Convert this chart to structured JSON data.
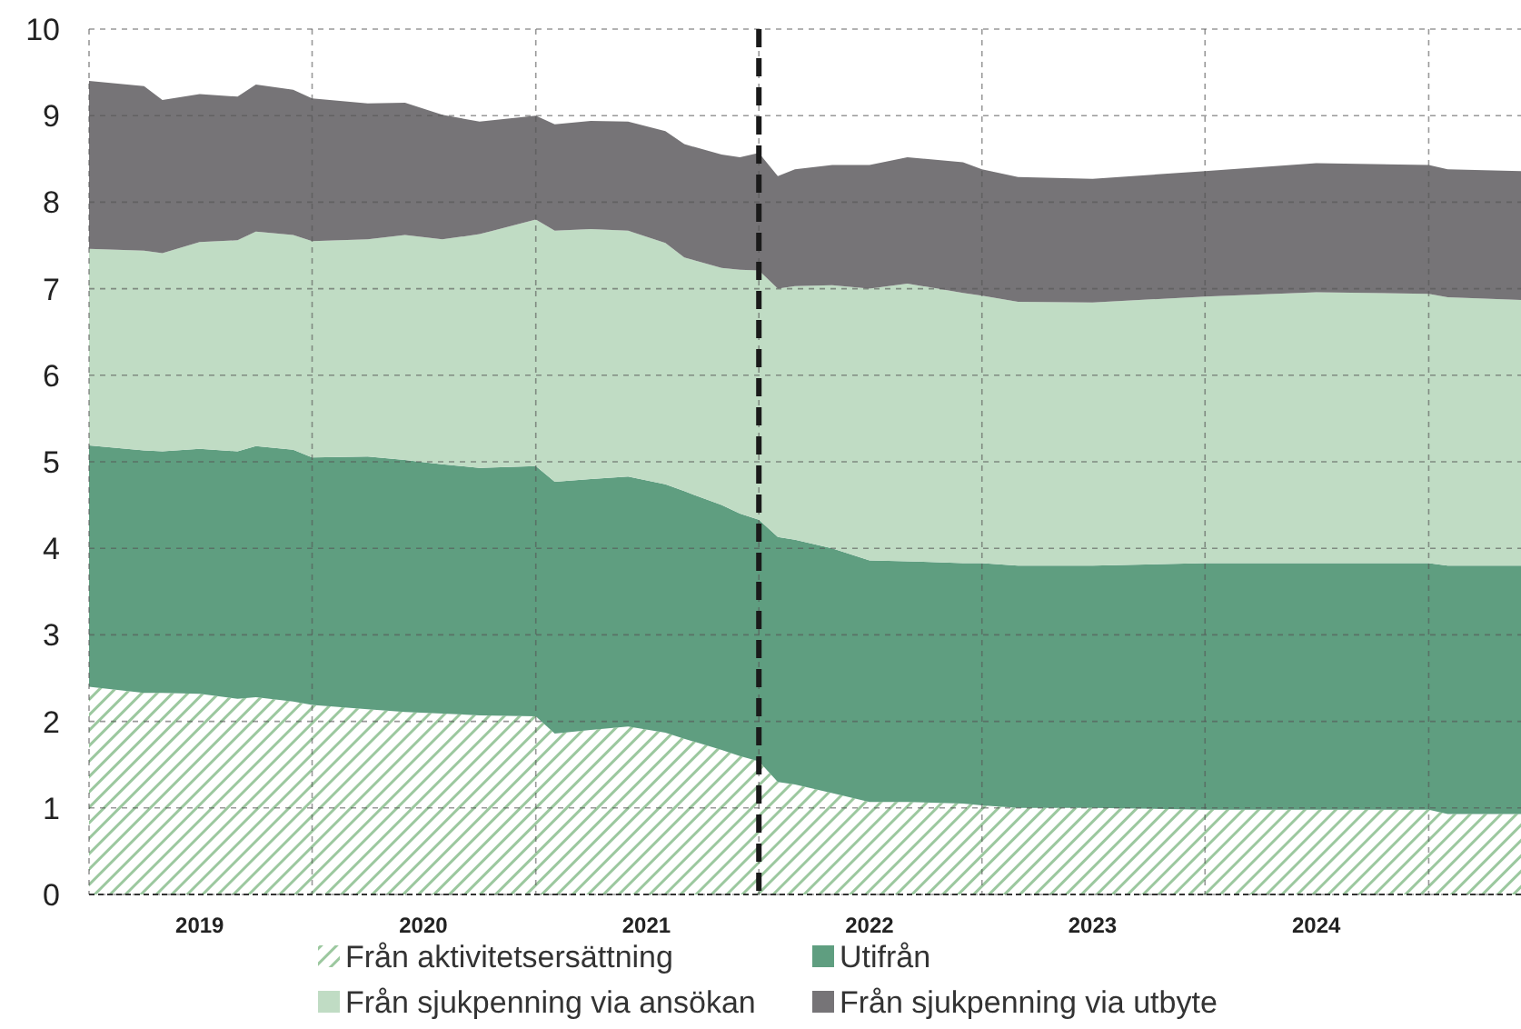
{
  "chart_data": {
    "type": "area",
    "stacked": true,
    "x": [
      "2019-01",
      "2019-04",
      "2019-05",
      "2019-07",
      "2019-09",
      "2019-10",
      "2019-12",
      "2020-01",
      "2020-04",
      "2020-06",
      "2020-08",
      "2020-10",
      "2021-01",
      "2021-02",
      "2021-04",
      "2021-06",
      "2021-08",
      "2021-09",
      "2021-11",
      "2021-12",
      "2022-01",
      "2022-02",
      "2022-03",
      "2022-05",
      "2022-07",
      "2022-09",
      "2022-12",
      "2023-01",
      "2023-03",
      "2023-07",
      "2024-01",
      "2024-07",
      "2025-01",
      "2025-02",
      "2025-06"
    ],
    "series": [
      {
        "name": "Från aktivitetsersättning",
        "color": "#9cc89f",
        "values": [
          2.4,
          2.33,
          2.33,
          2.32,
          2.26,
          2.28,
          2.23,
          2.19,
          2.14,
          2.11,
          2.09,
          2.07,
          2.06,
          1.86,
          1.9,
          1.94,
          1.87,
          1.8,
          1.67,
          1.6,
          1.54,
          1.3,
          1.27,
          1.17,
          1.07,
          1.07,
          1.05,
          1.03,
          1.0,
          1.0,
          0.98,
          0.98,
          0.98,
          0.93,
          0.93
        ]
      },
      {
        "name": "Utifrån",
        "color": "#5f9e80",
        "values": [
          2.79,
          2.8,
          2.79,
          2.83,
          2.86,
          2.9,
          2.91,
          2.86,
          2.92,
          2.91,
          2.88,
          2.86,
          2.89,
          2.91,
          2.9,
          2.89,
          2.87,
          2.86,
          2.83,
          2.8,
          2.79,
          2.83,
          2.83,
          2.83,
          2.79,
          2.78,
          2.78,
          2.8,
          2.8,
          2.8,
          2.85,
          2.85,
          2.85,
          2.87,
          2.87
        ]
      },
      {
        "name": "Från sjukpenning via ansökan",
        "color": "#c0dcc4",
        "values": [
          2.27,
          2.31,
          2.29,
          2.39,
          2.44,
          2.48,
          2.48,
          2.5,
          2.51,
          2.6,
          2.6,
          2.7,
          2.85,
          2.9,
          2.89,
          2.84,
          2.79,
          2.7,
          2.74,
          2.82,
          2.88,
          2.87,
          2.93,
          3.04,
          3.14,
          3.21,
          3.12,
          3.09,
          3.05,
          3.04,
          3.08,
          3.13,
          3.11,
          3.1,
          3.07
        ]
      },
      {
        "name": "Från sjukpenning via utbyte",
        "color": "#767477",
        "values": [
          1.94,
          1.9,
          1.77,
          1.71,
          1.66,
          1.7,
          1.68,
          1.65,
          1.57,
          1.53,
          1.44,
          1.3,
          1.2,
          1.23,
          1.25,
          1.26,
          1.29,
          1.31,
          1.31,
          1.3,
          1.36,
          1.3,
          1.35,
          1.39,
          1.43,
          1.46,
          1.51,
          1.46,
          1.44,
          1.43,
          1.45,
          1.49,
          1.49,
          1.48,
          1.49
        ]
      }
    ],
    "xlim": [
      "2019-01",
      "2025-06"
    ],
    "xticks": [
      {
        "value": "2019-01",
        "label": null
      },
      {
        "value": "2019-07",
        "label": "2019"
      },
      {
        "value": "2020-01",
        "label": null
      },
      {
        "value": "2020-07",
        "label": "2020"
      },
      {
        "value": "2021-01",
        "label": null
      },
      {
        "value": "2021-07",
        "label": "2021"
      },
      {
        "value": "2022-01",
        "label": null
      },
      {
        "value": "2022-07",
        "label": "2022"
      },
      {
        "value": "2023-01",
        "label": null
      },
      {
        "value": "2023-07",
        "label": "2023"
      },
      {
        "value": "2024-01",
        "label": null
      },
      {
        "value": "2024-07",
        "label": "2024"
      },
      {
        "value": "2025-01",
        "label": null
      }
    ],
    "ylim": [
      0,
      10
    ],
    "yticks": [
      0,
      1,
      2,
      3,
      4,
      5,
      6,
      7,
      8,
      9,
      10
    ],
    "grid": true,
    "legend": "bottom",
    "ref_lines": [
      {
        "axis": "x",
        "value": "2022-01",
        "color": "#1a1a1a",
        "line_style": "dashed"
      }
    ]
  }
}
